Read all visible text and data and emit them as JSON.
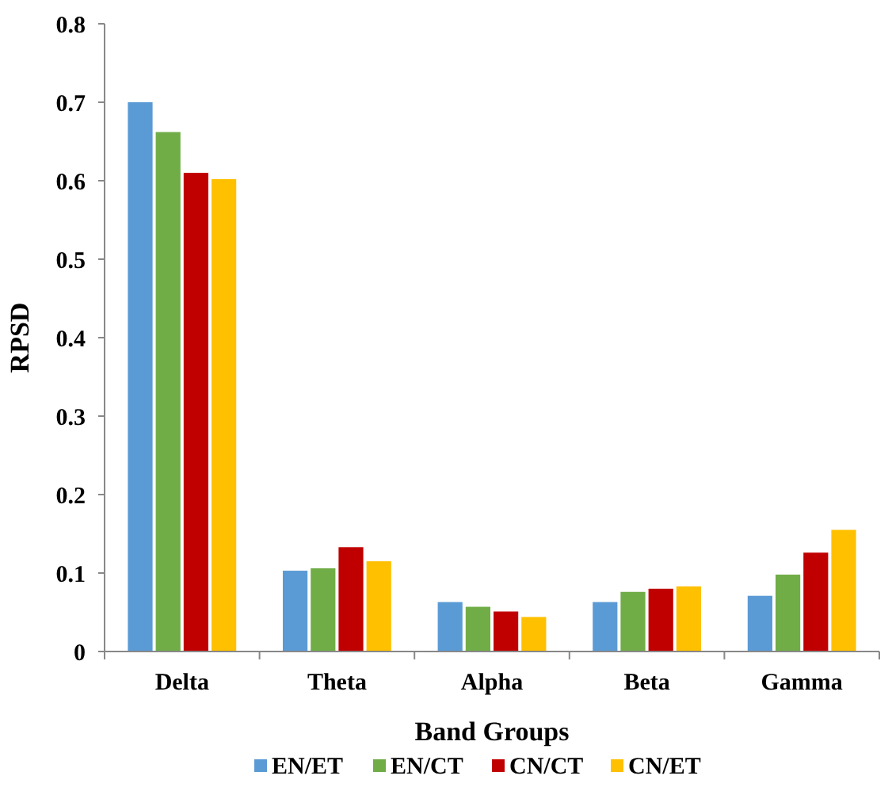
{
  "chart_data": {
    "type": "bar",
    "xlabel": "Band Groups",
    "ylabel": "RPSD",
    "categories": [
      "Delta",
      "Theta",
      "Alpha",
      "Beta",
      "Gamma"
    ],
    "series": [
      {
        "name": "EN/ET",
        "color": "#5b9bd5",
        "values": [
          0.7,
          0.103,
          0.063,
          0.063,
          0.071
        ]
      },
      {
        "name": "EN/CT",
        "color": "#70ad47",
        "values": [
          0.662,
          0.106,
          0.057,
          0.076,
          0.098
        ]
      },
      {
        "name": "CN/CT",
        "color": "#c00000",
        "values": [
          0.61,
          0.133,
          0.051,
          0.08,
          0.126
        ]
      },
      {
        "name": "CN/ET",
        "color": "#ffc000",
        "values": [
          0.602,
          0.115,
          0.044,
          0.083,
          0.155
        ]
      }
    ],
    "ylim": [
      0,
      0.8
    ],
    "yticks": [
      0,
      {
        "value": 0.1,
        "label": "0.1"
      },
      {
        "value": 0.2,
        "label": "0.2"
      },
      {
        "value": 0.3,
        "label": "0.3"
      },
      {
        "value": 0.4,
        "label": "0.4"
      },
      {
        "value": 0.5,
        "label": "0.5"
      },
      {
        "value": 0.6,
        "label": "0.6"
      },
      {
        "value": 0.7,
        "label": "0.7"
      },
      {
        "value": 0.8,
        "label": "0.8"
      }
    ],
    "legend": "bottom"
  }
}
